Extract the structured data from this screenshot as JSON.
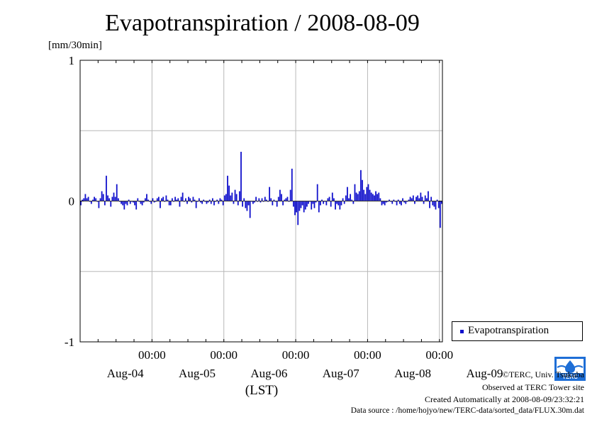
{
  "chart_data": {
    "type": "bar",
    "title": "Evapotranspiration / 2008-08-09",
    "ylabel": "[mm/30min]",
    "xlabel": "(LST)",
    "ylim": [
      -1,
      1
    ],
    "yticks": [
      -1,
      0,
      1
    ],
    "grid": true,
    "legend_position": "bottom-right",
    "color": "#1111cc",
    "x_time_labels": [
      "00:00",
      "00:00",
      "00:00",
      "00:00",
      "00:00"
    ],
    "x_date_labels": [
      "Aug-04",
      "Aug-05",
      "Aug-06",
      "Aug-07",
      "Aug-08",
      "Aug-09"
    ],
    "interval": "30min",
    "series": [
      {
        "name": "Evapotranspiration",
        "values": [
          -0.03,
          0.01,
          0.02,
          0.05,
          0.02,
          0.03,
          0.0,
          -0.02,
          0.01,
          0.03,
          0.02,
          0.0,
          -0.05,
          0.02,
          0.07,
          0.05,
          -0.03,
          0.18,
          0.04,
          0.02,
          -0.04,
          0.03,
          0.06,
          0.03,
          0.12,
          0.02,
          0.0,
          -0.02,
          -0.03,
          -0.06,
          -0.02,
          -0.03,
          0.01,
          -0.02,
          0.0,
          -0.01,
          -0.03,
          -0.06,
          0.02,
          0.0,
          -0.02,
          -0.03,
          -0.01,
          0.02,
          0.05,
          0.01,
          0.0,
          -0.02,
          0.02,
          -0.01,
          0.0,
          0.02,
          0.03,
          -0.05,
          0.02,
          0.03,
          0.0,
          0.04,
          0.01,
          -0.03,
          -0.03,
          0.02,
          0.0,
          0.03,
          0.01,
          0.02,
          -0.04,
          0.03,
          0.06,
          0.0,
          0.02,
          -0.02,
          0.03,
          0.02,
          -0.01,
          0.03,
          0.01,
          -0.05,
          0.0,
          0.02,
          -0.01,
          -0.02,
          0.01,
          0.0,
          -0.02,
          -0.01,
          0.01,
          -0.02,
          0.02,
          -0.03,
          0.0,
          0.01,
          -0.02,
          0.02,
          0.01,
          -0.03,
          0.04,
          0.05,
          0.18,
          0.11,
          0.04,
          0.06,
          -0.02,
          0.08,
          0.05,
          -0.03,
          0.07,
          0.35,
          -0.04,
          0.02,
          -0.05,
          -0.07,
          -0.03,
          -0.12,
          0.0,
          -0.02,
          -0.01,
          0.03,
          0.0,
          0.02,
          -0.01,
          0.02,
          0.0,
          0.03,
          0.01,
          0.0,
          0.1,
          0.02,
          -0.03,
          0.01,
          0.0,
          -0.04,
          0.03,
          0.08,
          0.05,
          -0.03,
          0.01,
          0.02,
          0.03,
          0.0,
          0.08,
          0.23,
          -0.04,
          -0.1,
          -0.08,
          -0.17,
          -0.07,
          -0.05,
          -0.03,
          -0.08,
          -0.06,
          -0.04,
          -0.02,
          0.0,
          -0.06,
          -0.02,
          -0.05,
          -0.01,
          0.12,
          -0.08,
          -0.03,
          0.01,
          -0.02,
          0.0,
          -0.03,
          0.02,
          0.03,
          -0.04,
          0.06,
          0.02,
          -0.06,
          -0.02,
          -0.03,
          -0.06,
          -0.03,
          0.02,
          -0.02,
          0.04,
          0.1,
          0.02,
          0.05,
          0.01,
          -0.02,
          0.12,
          0.06,
          0.05,
          0.07,
          0.22,
          0.15,
          0.08,
          0.05,
          0.1,
          0.12,
          0.08,
          0.06,
          0.05,
          0.04,
          0.07,
          0.05,
          0.06,
          0.02,
          -0.03,
          -0.02,
          -0.03,
          -0.01,
          0.0,
          0.01,
          0.0,
          -0.02,
          0.01,
          0.0,
          -0.03,
          0.01,
          -0.02,
          -0.03,
          0.02,
          -0.01,
          -0.02,
          0.0,
          0.01,
          0.03,
          0.02,
          0.04,
          -0.02,
          0.03,
          0.04,
          0.02,
          0.06,
          0.03,
          -0.02,
          0.04,
          0.02,
          0.07,
          -0.05,
          0.03,
          -0.03,
          -0.04,
          -0.06,
          0.01,
          -0.05,
          -0.19,
          -0.02
        ]
      }
    ]
  },
  "credits": {
    "copyright": "©TERC, Univ. Tsukuba",
    "observed": "Observed at TERC Tower site",
    "created": "Created Automatically at 2008-08-09/23:32:21",
    "source": "Data source : /home/hojyo/new/TERC-data/sorted_data/FLUX.30m.dat",
    "logo_text": "TERC"
  }
}
